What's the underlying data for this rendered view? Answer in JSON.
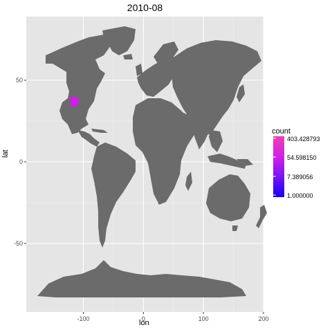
{
  "title": "2010-08",
  "chart_data": {
    "type": "heatmap",
    "title": "2010-08",
    "xlabel": "lon",
    "ylabel": "lat",
    "xlim": [
      -195,
      200
    ],
    "ylim": [
      -92,
      89
    ],
    "x_ticks": [
      -100,
      0,
      100,
      200
    ],
    "x_tick_labels": [
      "-100",
      "0",
      "100",
      "200"
    ],
    "y_ticks": [
      -50,
      0,
      50
    ],
    "y_tick_labels": [
      "-50",
      "0",
      "50"
    ],
    "tiles": [
      {
        "lon": -115,
        "lat": 37,
        "count": 80
      }
    ],
    "legend": {
      "title": "count",
      "labels": [
        "403.428793",
        "54.598150",
        "7.389056",
        "1.000000"
      ],
      "colors": [
        "#f03fb3",
        "#cf1fe8",
        "#7b15f3",
        "#1400f9"
      ],
      "min": 1.0,
      "max": 403.428793
    },
    "grid": true,
    "panel_background": "#e5e5e5",
    "land_color": "#6b6b6b"
  }
}
